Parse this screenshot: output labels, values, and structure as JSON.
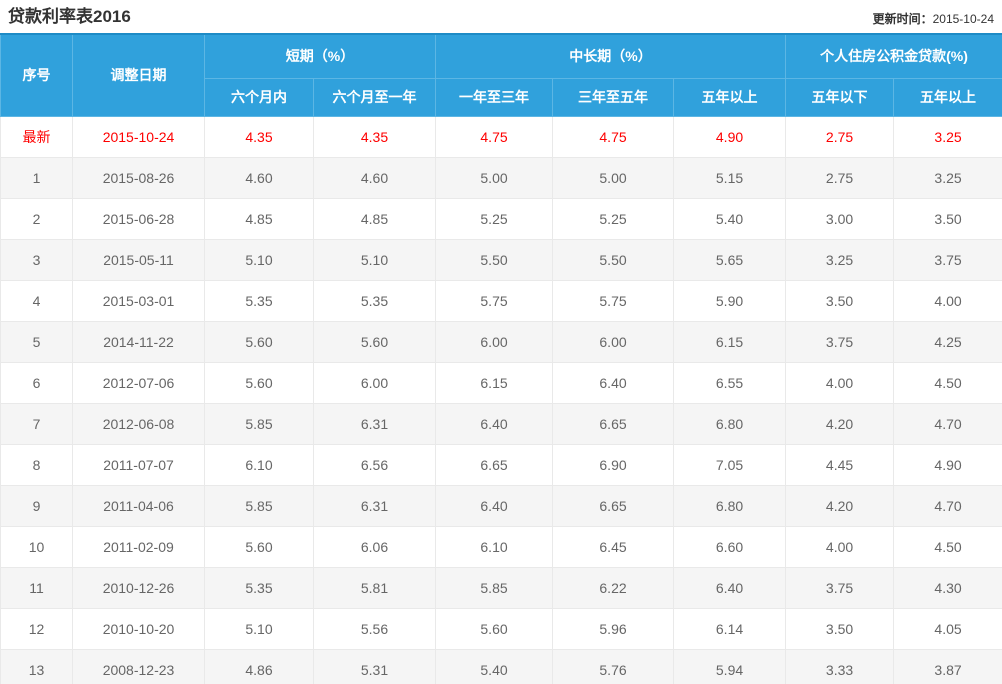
{
  "page": {
    "title": "贷款利率表2016",
    "update_label": "更新时间：",
    "update_date": "2015-10-24"
  },
  "colors": {
    "header_background": "#30a1dc",
    "header_text": "#ffffff",
    "latest_row_text": "#fe0000",
    "body_text": "#666666",
    "alt_row_background": "#f5f5f5"
  },
  "table": {
    "header": {
      "col_no": "序号",
      "col_date": "调整日期",
      "group_short": "短期（%）",
      "group_mid": "中长期（%）",
      "group_fund": "个人住房公积金贷款(%)",
      "sub": [
        "六个月内",
        "六个月至一年",
        "一年至三年",
        "三年至五年",
        "五年以上",
        "五年以下",
        "五年以上"
      ]
    },
    "rows": [
      {
        "no": "最新",
        "date": "2015-10-24",
        "values": [
          "4.35",
          "4.35",
          "4.75",
          "4.75",
          "4.90",
          "2.75",
          "3.25"
        ],
        "highlight": true
      },
      {
        "no": "1",
        "date": "2015-08-26",
        "values": [
          "4.60",
          "4.60",
          "5.00",
          "5.00",
          "5.15",
          "2.75",
          "3.25"
        ]
      },
      {
        "no": "2",
        "date": "2015-06-28",
        "values": [
          "4.85",
          "4.85",
          "5.25",
          "5.25",
          "5.40",
          "3.00",
          "3.50"
        ]
      },
      {
        "no": "3",
        "date": "2015-05-11",
        "values": [
          "5.10",
          "5.10",
          "5.50",
          "5.50",
          "5.65",
          "3.25",
          "3.75"
        ]
      },
      {
        "no": "4",
        "date": "2015-03-01",
        "values": [
          "5.35",
          "5.35",
          "5.75",
          "5.75",
          "5.90",
          "3.50",
          "4.00"
        ]
      },
      {
        "no": "5",
        "date": "2014-11-22",
        "values": [
          "5.60",
          "5.60",
          "6.00",
          "6.00",
          "6.15",
          "3.75",
          "4.25"
        ]
      },
      {
        "no": "6",
        "date": "2012-07-06",
        "values": [
          "5.60",
          "6.00",
          "6.15",
          "6.40",
          "6.55",
          "4.00",
          "4.50"
        ]
      },
      {
        "no": "7",
        "date": "2012-06-08",
        "values": [
          "5.85",
          "6.31",
          "6.40",
          "6.65",
          "6.80",
          "4.20",
          "4.70"
        ]
      },
      {
        "no": "8",
        "date": "2011-07-07",
        "values": [
          "6.10",
          "6.56",
          "6.65",
          "6.90",
          "7.05",
          "4.45",
          "4.90"
        ]
      },
      {
        "no": "9",
        "date": "2011-04-06",
        "values": [
          "5.85",
          "6.31",
          "6.40",
          "6.65",
          "6.80",
          "4.20",
          "4.70"
        ]
      },
      {
        "no": "10",
        "date": "2011-02-09",
        "values": [
          "5.60",
          "6.06",
          "6.10",
          "6.45",
          "6.60",
          "4.00",
          "4.50"
        ]
      },
      {
        "no": "11",
        "date": "2010-12-26",
        "values": [
          "5.35",
          "5.81",
          "5.85",
          "6.22",
          "6.40",
          "3.75",
          "4.30"
        ]
      },
      {
        "no": "12",
        "date": "2010-10-20",
        "values": [
          "5.10",
          "5.56",
          "5.60",
          "5.96",
          "6.14",
          "3.50",
          "4.05"
        ]
      },
      {
        "no": "13",
        "date": "2008-12-23",
        "values": [
          "4.86",
          "5.31",
          "5.40",
          "5.76",
          "5.94",
          "3.33",
          "3.87"
        ]
      }
    ]
  }
}
